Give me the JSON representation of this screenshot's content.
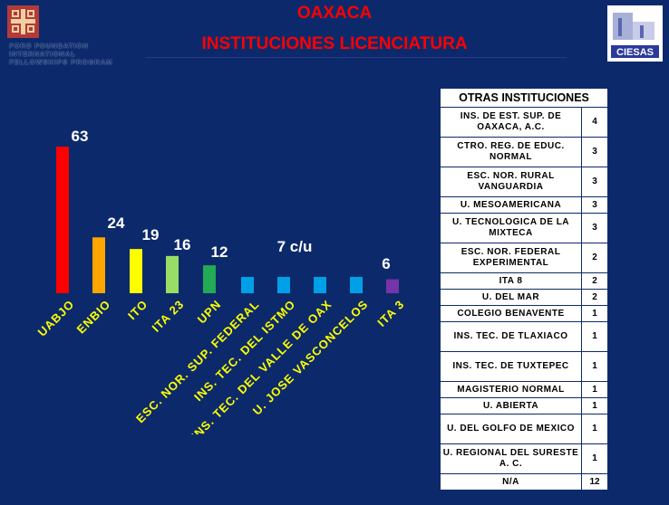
{
  "title": "OAXACA",
  "subtitle": "INSTITUCIONES LICENCIATURA",
  "ford_text": [
    "FORD FOUNDATION",
    "INTERNATIONAL",
    "FELLOWSHIPS PROGRAM"
  ],
  "ciesas_text": "CIESAS",
  "chart_data": {
    "type": "bar",
    "categories": [
      "UABJO",
      "ENBIO",
      "ITO",
      "ITA 23",
      "UPN",
      "ESC. NOR. SUP. FEDERAL",
      "INS. TEC. DEL ISTMO",
      "INS. TEC. DEL VALLE DE OAX",
      "U. JOSE VASCONCELOS",
      "ITA 3"
    ],
    "values": [
      63,
      24,
      19,
      16,
      12,
      7,
      7,
      7,
      7,
      6
    ],
    "data_labels": [
      "63",
      "24",
      "19",
      "16",
      "12",
      "",
      "7 c/u",
      "",
      "",
      "6"
    ],
    "colors": [
      "#ff0000",
      "#ffa500",
      "#ffff00",
      "#99dd66",
      "#22aa55",
      "#00a0e8",
      "#00a0e8",
      "#00a0e8",
      "#00a0e8",
      "#7733aa"
    ],
    "ylim": [
      0,
      63
    ],
    "grid": false,
    "legend": "none"
  },
  "table": {
    "header": "OTRAS INSTITUCIONES",
    "rows": [
      {
        "name": "INS. DE EST. SUP. DE OAXACA, A.C.",
        "value": "4"
      },
      {
        "name": "CTRO. REG. DE EDUC. NORMAL",
        "value": "3"
      },
      {
        "name": "ESC. NOR. RURAL VANGUARDIA",
        "value": "3"
      },
      {
        "name": "U. MESOAMERICANA",
        "value": "3"
      },
      {
        "name": "U. TECNOLOGICA DE LA MIXTECA",
        "value": "3"
      },
      {
        "name": "ESC. NOR. FEDERAL EXPERIMENTAL",
        "value": "2"
      },
      {
        "name": "ITA 8",
        "value": "2"
      },
      {
        "name": "U. DEL MAR",
        "value": "2"
      },
      {
        "name": "COLEGIO BENAVENTE",
        "value": "1"
      },
      {
        "name": "INS. TEC. DE TLAXIACO",
        "value": "1"
      },
      {
        "name": "INS. TEC. DE TUXTEPEC",
        "value": "1"
      },
      {
        "name": "MAGISTERIO NORMAL",
        "value": "1"
      },
      {
        "name": "U. ABIERTA",
        "value": "1"
      },
      {
        "name": "U. DEL GOLFO DE MEXICO",
        "value": "1"
      },
      {
        "name": "U. REGIONAL DEL SURESTE A. C.",
        "value": "1"
      },
      {
        "name": "N/A",
        "value": "12"
      }
    ]
  }
}
